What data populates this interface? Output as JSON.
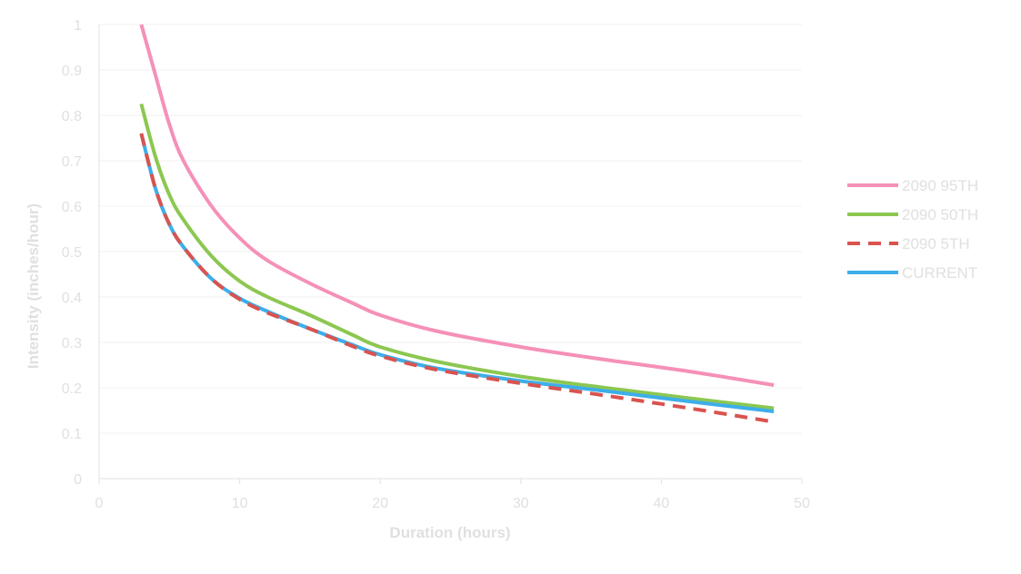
{
  "chart_data": {
    "type": "line",
    "title": "",
    "xlabel": "Duration (hours)",
    "ylabel": "Intensity (inches/hour)",
    "xlim": [
      0,
      50
    ],
    "ylim": [
      0,
      1
    ],
    "x_ticks": [
      0,
      10,
      20,
      30,
      40,
      50
    ],
    "y_ticks": [
      0,
      0.1,
      0.2,
      0.3,
      0.4,
      0.5,
      0.6,
      0.7,
      0.8,
      0.9,
      1
    ],
    "grid": "horizontal",
    "legend_position": "right",
    "x": [
      3,
      4,
      5,
      6,
      8,
      10,
      12,
      15,
      18,
      20,
      24,
      30,
      36,
      42,
      48
    ],
    "series": [
      {
        "name": "2090 95TH",
        "color": "#f590b8",
        "dash": "solid",
        "values": [
          1.0,
          0.89,
          0.78,
          0.7,
          0.6,
          0.53,
          0.48,
          0.43,
          0.387,
          0.36,
          0.325,
          0.29,
          0.262,
          0.236,
          0.206
        ]
      },
      {
        "name": "2090 50TH",
        "color": "#8cc751",
        "dash": "solid",
        "values": [
          0.825,
          0.71,
          0.625,
          0.57,
          0.49,
          0.435,
          0.4,
          0.36,
          0.317,
          0.29,
          0.258,
          0.225,
          0.2,
          0.177,
          0.155
        ]
      },
      {
        "name": "2090 5TH",
        "color": "#d9534f",
        "dash": "dashed",
        "values": [
          0.76,
          0.64,
          0.56,
          0.51,
          0.44,
          0.395,
          0.365,
          0.33,
          0.292,
          0.27,
          0.24,
          0.21,
          0.183,
          0.155,
          0.125
        ]
      },
      {
        "name": "CURRENT",
        "color": "#3daee9",
        "dash": "solid",
        "values": [
          0.76,
          0.64,
          0.56,
          0.51,
          0.44,
          0.397,
          0.368,
          0.33,
          0.295,
          0.273,
          0.243,
          0.215,
          0.193,
          0.17,
          0.148
        ]
      }
    ]
  }
}
